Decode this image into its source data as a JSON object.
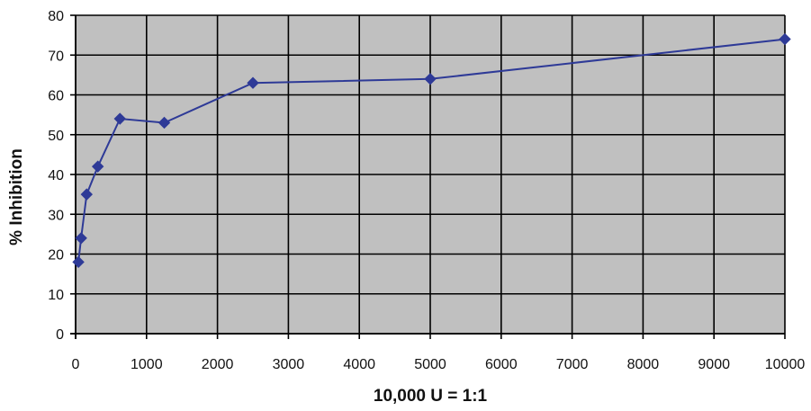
{
  "chart_data": {
    "type": "line",
    "title": "",
    "xlabel": "10,000 U = 1:1",
    "ylabel": "% Inhibition",
    "xlim": [
      0,
      10000
    ],
    "ylim": [
      0,
      80
    ],
    "x_ticks": [
      0,
      1000,
      2000,
      3000,
      4000,
      5000,
      6000,
      7000,
      8000,
      9000,
      10000
    ],
    "y_ticks": [
      0,
      10,
      20,
      30,
      40,
      50,
      60,
      70,
      80
    ],
    "grid": true,
    "plot_background": "#c0c0c0",
    "grid_color": "#000000",
    "series": [
      {
        "color": "#2e3a97",
        "marker": "diamond",
        "x": [
          39,
          78,
          156,
          313,
          625,
          1250,
          2500,
          5000,
          10000
        ],
        "y": [
          18,
          24,
          35,
          42,
          54,
          53,
          63,
          64,
          74
        ]
      }
    ]
  }
}
